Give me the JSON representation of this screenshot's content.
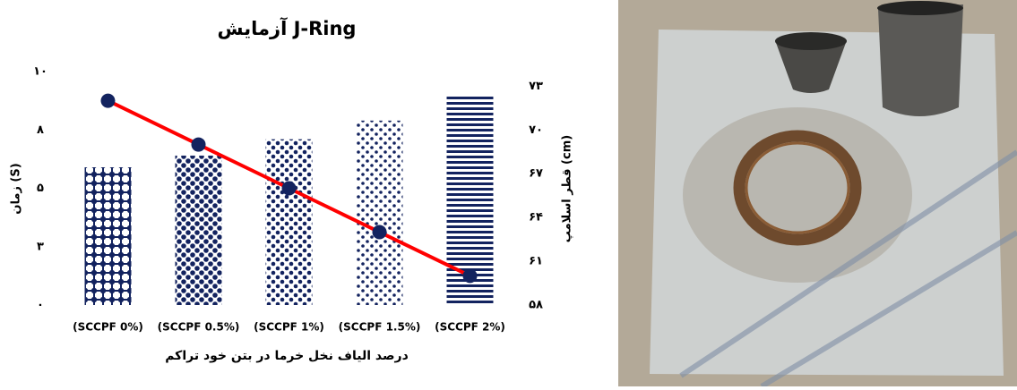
{
  "chart_data": {
    "type": "bar_line",
    "title": "آزمایش J-Ring",
    "ylabel": "زمان (S)",
    "y2label": "قطر اسلامپ (cm)",
    "xlabel": "درصد الیاف نخل خرما در بتن خود تراکم",
    "categories": [
      "(SCCPF 0%)",
      "(SCCPF 0.5%)",
      "(SCCPF 1%)",
      "(SCCPF 1.5%)",
      "(SCCPF 2%)"
    ],
    "series": [
      {
        "type": "bar",
        "color": "#13235f",
        "values": [
          5.9,
          6.4,
          7.1,
          7.9,
          9.0
        ]
      },
      {
        "type": "line",
        "axis": "y2",
        "color": "#ff0000",
        "marker_color": "#13235f",
        "values": [
          72,
          69,
          66,
          63,
          60
        ]
      }
    ],
    "ylim": [
      0,
      10
    ],
    "yticks": [
      {
        "value": 0,
        "label": "۰"
      },
      {
        "value": 2.5,
        "label": "۳"
      },
      {
        "value": 5,
        "label": "۵"
      },
      {
        "value": 7.5,
        "label": "۸"
      },
      {
        "value": 10,
        "label": "۱۰"
      }
    ],
    "y2lim": [
      58,
      74
    ],
    "y2ticks": [
      {
        "value": 58,
        "label": "۵۸"
      },
      {
        "value": 61,
        "label": "۶۱"
      },
      {
        "value": 64,
        "label": "۶۴"
      },
      {
        "value": 67,
        "label": "۶۷"
      },
      {
        "value": 70,
        "label": "۷۰"
      },
      {
        "value": 73,
        "label": "۷۳"
      }
    ]
  }
}
